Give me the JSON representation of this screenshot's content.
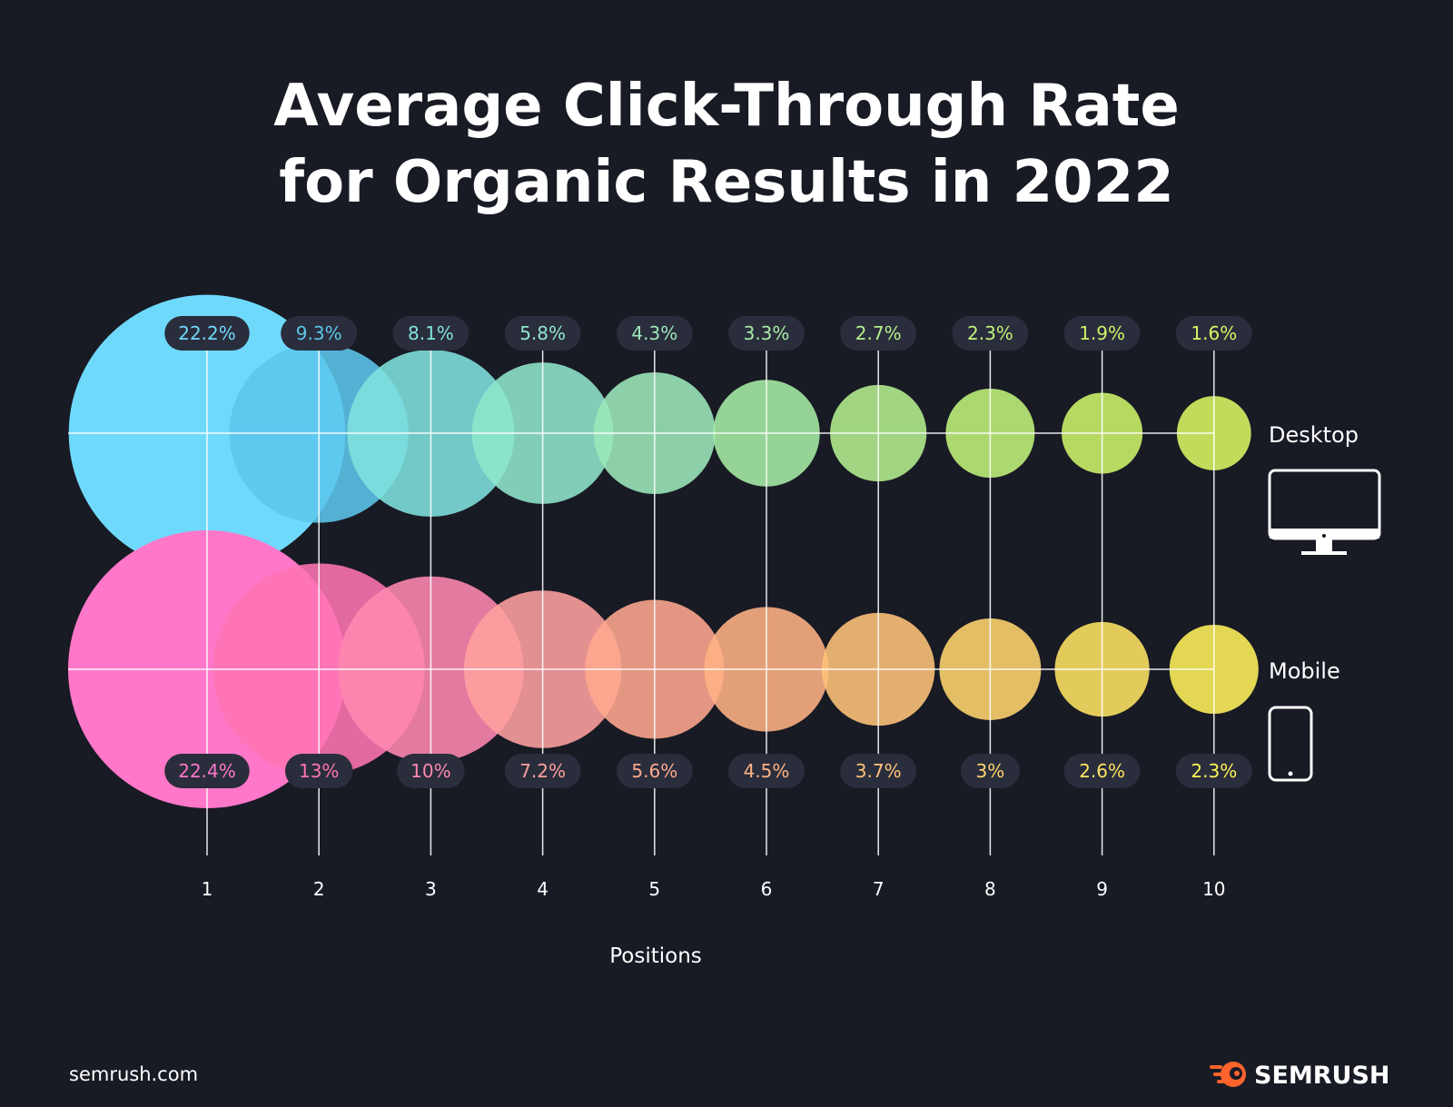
{
  "chart_data": {
    "type": "scatter",
    "title_lines": [
      "Average Click-Through Rate",
      "for Organic Results in 2022"
    ],
    "xlabel": "Positions",
    "categories": [
      "1",
      "2",
      "3",
      "4",
      "5",
      "6",
      "7",
      "8",
      "9",
      "10"
    ],
    "x": [
      1,
      2,
      3,
      4,
      5,
      6,
      7,
      8,
      9,
      10
    ],
    "series": [
      {
        "name": "Desktop",
        "values": [
          22.2,
          9.3,
          8.1,
          5.8,
          4.3,
          3.3,
          2.7,
          2.3,
          1.9,
          1.6
        ],
        "labels": [
          "22.2%",
          "9.3%",
          "8.1%",
          "5.8%",
          "4.3%",
          "3.3%",
          "2.7%",
          "2.3%",
          "1.9%",
          "1.6%"
        ],
        "colors": [
          "#6fd9fb",
          "#5cc6ec",
          "#80e1de",
          "#8fe6cc",
          "#9ce8bb",
          "#a7eda6",
          "#b4ef8f",
          "#c0f27b",
          "#cdf46b",
          "#d8f663"
        ],
        "icon": "desktop-monitor-icon"
      },
      {
        "name": "Mobile",
        "values": [
          22.4,
          13,
          10,
          7.2,
          5.6,
          4.5,
          3.7,
          3,
          2.6,
          2.3
        ],
        "labels": [
          "22.4%",
          "13%",
          "10%",
          "7.2%",
          "5.6%",
          "4.5%",
          "3.7%",
          "3%",
          "2.6%",
          "2.3%"
        ],
        "colors": [
          "#ff77c9",
          "#ff74b3",
          "#ff88b0",
          "#ffa09f",
          "#ffa98f",
          "#ffb284",
          "#ffc47a",
          "#ffd56e",
          "#ffe463",
          "#fff15a"
        ],
        "icon": "mobile-phone-icon"
      }
    ],
    "grid": true,
    "legend": "right"
  },
  "footer": {
    "site": "semrush.com",
    "brand": "SEMRUSH",
    "brand_icon": "semrush-fire-logo-icon"
  },
  "colors": {
    "background": "#181a24",
    "pill": "#2a2d3b",
    "line": "#ffffff",
    "brand_accent": "#ff642d"
  }
}
